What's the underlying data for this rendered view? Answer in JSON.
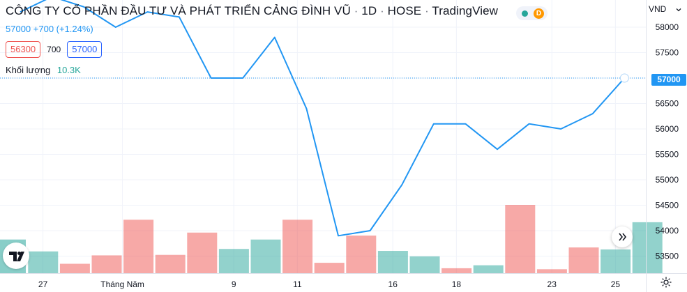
{
  "legend": {
    "company": "CÔNG TY CỔ PHẦN ĐẦU TƯ VÀ PHÁT TRIỂN CẢNG ĐÌNH VŨ",
    "separator": "·",
    "interval": "1D",
    "exchange": "HOSE",
    "source": "TradingView",
    "status_badge": "D",
    "change": "57000 +700 (+1.24%)",
    "sell_price": "56300",
    "spread": "700",
    "buy_price": "57000",
    "volume_label": "Khối lượng",
    "volume_value": "10.3K"
  },
  "price_scale": {
    "currency": "VND",
    "current_price_label": "57000"
  },
  "colors": {
    "line": "#2196f3",
    "volume_up": "#26a69a",
    "volume_down": "#ef5350",
    "grid": "#f0f3fa"
  },
  "icons": [
    "chevron-down-icon",
    "double-chevron-right-icon",
    "tradingview-logo-icon",
    "gear-icon"
  ],
  "chart_data": {
    "type": "line",
    "title": "",
    "xlabel": "",
    "ylabel": "",
    "grid": true,
    "ylim": [
      53250,
      58250
    ],
    "y_ticks": [
      53500,
      54000,
      54500,
      55000,
      55500,
      56000,
      56500,
      57000,
      57500,
      58000
    ],
    "x_tick_labels": [
      "27",
      "Tháng Năm",
      "9",
      "11",
      "16",
      "18",
      "23",
      "25"
    ],
    "x_tick_indices": [
      1,
      3.5,
      7,
      9,
      12,
      14,
      17,
      19
    ],
    "series": [
      {
        "values": [
          58300,
          58600,
          58400,
          58000,
          58300,
          58200,
          57000,
          57000,
          57800,
          56400,
          53900,
          54000,
          54900,
          56100,
          56100,
          55600,
          56100,
          56000,
          56300,
          57000
        ]
      }
    ],
    "volume": {
      "values": [
        4400,
        1900,
        3600,
        10800,
        3700,
        8200,
        4900,
        6800,
        10800,
        2100,
        7600,
        4500,
        3400,
        1000,
        1600,
        13800,
        800,
        5200,
        4800,
        10300
      ],
      "direction": [
        "up",
        "down",
        "down",
        "down",
        "down",
        "down",
        "up",
        "up",
        "down",
        "down",
        "down",
        "up",
        "up",
        "down",
        "up",
        "down",
        "down",
        "down",
        "up",
        "up"
      ],
      "first_bar_value": 6800
    }
  }
}
